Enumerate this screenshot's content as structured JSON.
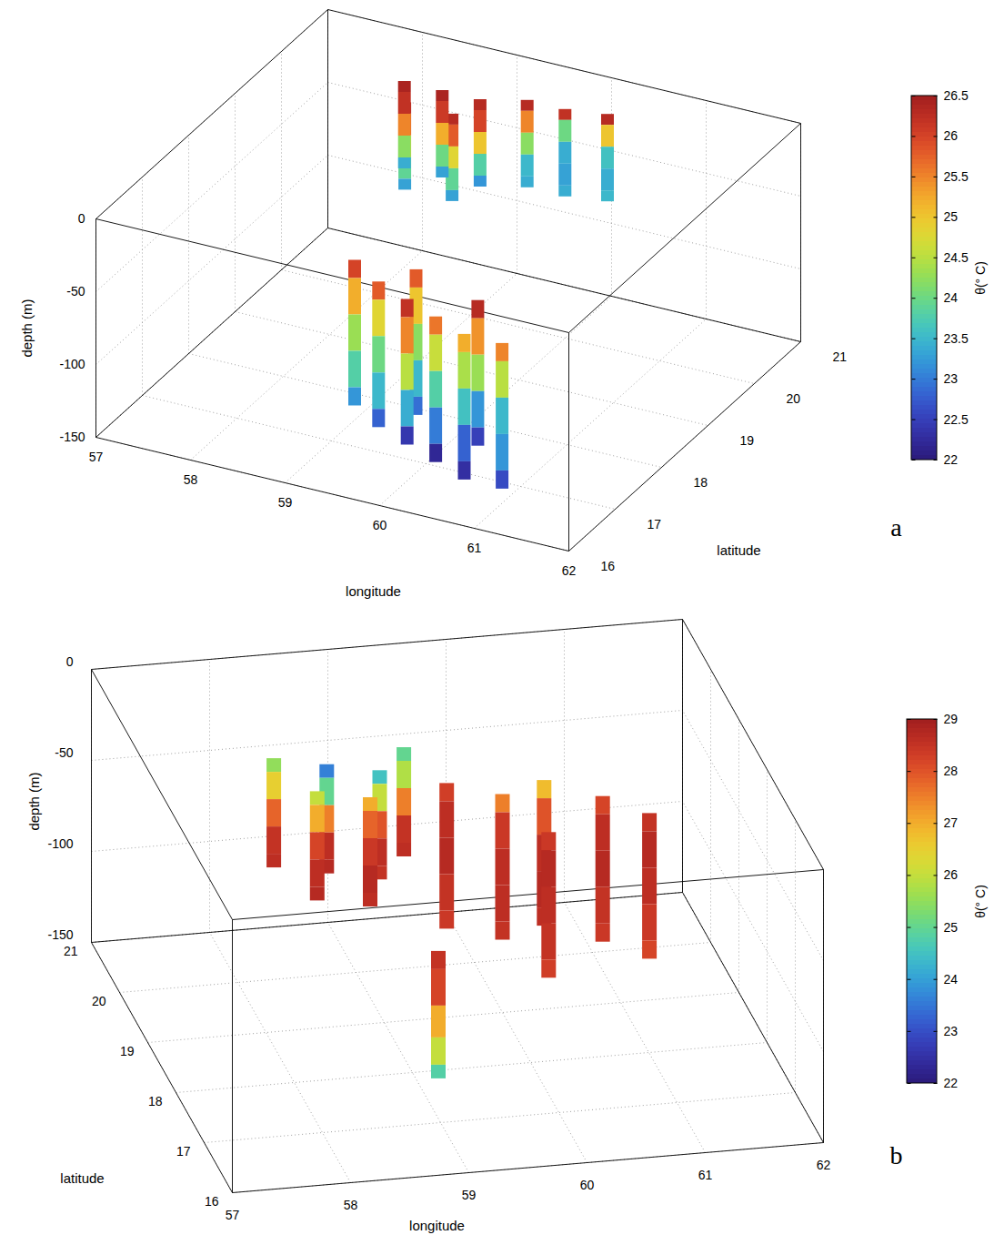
{
  "chart_data": [
    {
      "type": "surface3d",
      "panel": "a",
      "xlabel": "longitude",
      "ylabel": "latitude",
      "zlabel": "depth (m)",
      "xlim": [
        57,
        62
      ],
      "xticks": [
        57,
        58,
        59,
        60,
        61,
        62
      ],
      "ylim": [
        16,
        21
      ],
      "yticks": [
        16,
        17,
        18,
        19,
        20,
        21
      ],
      "zlim": [
        -150,
        0
      ],
      "zticks": [
        -150,
        -100,
        -50,
        0
      ],
      "grid": true,
      "colorbar": {
        "label": "θ(° C)",
        "range": [
          22,
          26.5
        ],
        "ticks": [
          22,
          22.5,
          23,
          23.5,
          24,
          24.5,
          25,
          25.5,
          26,
          26.5
        ]
      },
      "profiles": [
        {
          "lon": 58.5,
          "lat": 19.6,
          "depth": [
            0,
            -15,
            -30,
            -45,
            -60
          ],
          "theta": [
            26.3,
            25.8,
            24.8,
            23.9,
            23.3
          ]
        },
        {
          "lon": 59.0,
          "lat": 19.6,
          "depth": [
            0,
            -15,
            -30,
            -45,
            -60
          ],
          "theta": [
            26.3,
            25.8,
            24.8,
            23.9,
            23.3
          ]
        },
        {
          "lon": 58.3,
          "lat": 20.0,
          "depth": [
            0,
            -15,
            -30,
            -45,
            -60
          ],
          "theta": [
            26.4,
            26.2,
            25.5,
            24.2,
            23.4
          ]
        },
        {
          "lon": 58.7,
          "lat": 20.0,
          "depth": [
            0,
            -15,
            -30,
            -45,
            -60
          ],
          "theta": [
            26.4,
            26.1,
            25.2,
            24.0,
            23.3
          ]
        },
        {
          "lon": 59.1,
          "lat": 20.0,
          "depth": [
            0,
            -15,
            -30,
            -45,
            -60
          ],
          "theta": [
            26.3,
            26.0,
            25.0,
            23.8,
            23.2
          ]
        },
        {
          "lon": 59.5,
          "lat": 20.2,
          "depth": [
            0,
            -15,
            -30,
            -45,
            -60
          ],
          "theta": [
            26.3,
            25.5,
            24.2,
            23.5,
            23.4
          ]
        },
        {
          "lon": 59.9,
          "lat": 20.2,
          "depth": [
            0,
            -15,
            -30,
            -45,
            -60
          ],
          "theta": [
            26.2,
            24.0,
            23.4,
            23.3,
            23.4
          ]
        },
        {
          "lon": 60.3,
          "lat": 20.3,
          "depth": [
            0,
            -15,
            -30,
            -45,
            -60
          ],
          "theta": [
            26.3,
            25.0,
            23.6,
            23.4,
            23.5
          ]
        },
        {
          "lon": 59.0,
          "lat": 17.5,
          "depth": [
            -40,
            -65,
            -90,
            -115,
            -140
          ],
          "theta": [
            26.0,
            25.2,
            24.3,
            23.8,
            23.2
          ]
        },
        {
          "lon": 59.6,
          "lat": 17.6,
          "depth": [
            -40,
            -65,
            -90,
            -115,
            -140
          ],
          "theta": [
            25.8,
            25.0,
            24.2,
            23.5,
            22.9
          ]
        },
        {
          "lon": 60.4,
          "lat": 17.3,
          "depth": [
            -40,
            -65,
            -90,
            -115,
            -140
          ],
          "theta": [
            26.3,
            25.4,
            24.3,
            23.2,
            22.5
          ]
        },
        {
          "lon": 59.4,
          "lat": 17.2,
          "depth": [
            -40,
            -65,
            -90,
            -115,
            -140
          ],
          "theta": [
            25.8,
            24.8,
            24.0,
            23.5,
            22.8
          ]
        },
        {
          "lon": 59.8,
          "lat": 17.0,
          "depth": [
            -40,
            -65,
            -90,
            -115,
            -140
          ],
          "theta": [
            26.2,
            25.5,
            24.5,
            23.4,
            22.4
          ]
        },
        {
          "lon": 60.2,
          "lat": 16.8,
          "depth": [
            -40,
            -65,
            -90,
            -115,
            -140
          ],
          "theta": [
            25.6,
            24.6,
            23.8,
            23.0,
            22.2
          ]
        },
        {
          "lon": 60.6,
          "lat": 16.6,
          "depth": [
            -40,
            -65,
            -90,
            -115,
            -140
          ],
          "theta": [
            25.2,
            24.4,
            23.6,
            22.8,
            22.3
          ]
        },
        {
          "lon": 61.0,
          "lat": 16.6,
          "depth": [
            -40,
            -65,
            -90,
            -115,
            -140
          ],
          "theta": [
            25.5,
            24.5,
            23.5,
            23.2,
            22.6
          ]
        }
      ]
    },
    {
      "type": "surface3d",
      "panel": "b",
      "xlabel": "longitude",
      "ylabel": "latitude",
      "zlabel": "depth (m)",
      "xlim": [
        57,
        62
      ],
      "xticks": [
        57,
        58,
        59,
        60,
        61,
        62
      ],
      "ylim": [
        16,
        21
      ],
      "yticks": [
        16,
        17,
        18,
        19,
        20,
        21
      ],
      "zlim": [
        -150,
        0
      ],
      "zticks": [
        -150,
        -100,
        -50,
        0
      ],
      "grid": true,
      "colorbar": {
        "label": "θ(° C)",
        "range": [
          22,
          29
        ],
        "ticks": [
          22,
          23,
          24,
          25,
          26,
          27,
          28,
          29
        ]
      },
      "profiles": [
        {
          "lon": 59.5,
          "lat": 20.4,
          "depth": [
            -40,
            -55,
            -70,
            -85,
            -100
          ],
          "theta": [
            25.0,
            25.8,
            27.5,
            28.5,
            28.6
          ]
        },
        {
          "lon": 58.4,
          "lat": 20.4,
          "depth": [
            -40,
            -55,
            -70,
            -85,
            -100
          ],
          "theta": [
            25.5,
            26.5,
            27.8,
            28.5,
            28.6
          ]
        },
        {
          "lon": 58.8,
          "lat": 20.2,
          "depth": [
            -40,
            -55,
            -70,
            -85,
            -100
          ],
          "theta": [
            23.6,
            25.0,
            27.5,
            28.6,
            28.7
          ]
        },
        {
          "lon": 59.2,
          "lat": 20.0,
          "depth": [
            -40,
            -55,
            -70,
            -85,
            -100
          ],
          "theta": [
            24.5,
            26.0,
            28.0,
            28.6,
            28.5
          ]
        },
        {
          "lon": 58.6,
          "lat": 19.7,
          "depth": [
            -40,
            -55,
            -70,
            -85,
            -100
          ],
          "theta": [
            26.0,
            27.0,
            28.2,
            28.6,
            28.7
          ]
        },
        {
          "lon": 59.0,
          "lat": 19.5,
          "depth": [
            -40,
            -55,
            -70,
            -85,
            -100
          ],
          "theta": [
            27.0,
            27.8,
            28.4,
            28.7,
            28.6
          ]
        },
        {
          "lon": 59.6,
          "lat": 19.3,
          "depth": [
            -30,
            -50,
            -70,
            -90,
            -110
          ],
          "theta": [
            28.3,
            28.6,
            28.7,
            28.5,
            28.4
          ]
        },
        {
          "lon": 60.4,
          "lat": 19.2,
          "depth": [
            -30,
            -50,
            -70,
            -90,
            -110
          ],
          "theta": [
            26.8,
            28.0,
            28.6,
            28.7,
            28.6
          ]
        },
        {
          "lon": 60.0,
          "lat": 19.0,
          "depth": [
            -30,
            -50,
            -70,
            -90,
            -110
          ],
          "theta": [
            27.5,
            28.4,
            28.6,
            28.6,
            28.5
          ]
        },
        {
          "lon": 60.8,
          "lat": 18.8,
          "depth": [
            -30,
            -50,
            -70,
            -90,
            -110
          ],
          "theta": [
            28.2,
            28.6,
            28.7,
            28.5,
            28.4
          ]
        },
        {
          "lon": 61.1,
          "lat": 18.4,
          "depth": [
            -30,
            -50,
            -70,
            -90,
            -110
          ],
          "theta": [
            28.5,
            28.7,
            28.6,
            28.4,
            28.2
          ]
        },
        {
          "lon": 60.2,
          "lat": 18.2,
          "depth": [
            -30,
            -50,
            -70,
            -90,
            -110
          ],
          "theta": [
            28.4,
            28.7,
            28.6,
            28.5,
            28.3
          ]
        },
        {
          "lon": 59.1,
          "lat": 17.5,
          "depth": [
            -70,
            -90,
            -110,
            -125,
            -140
          ],
          "theta": [
            28.5,
            28.2,
            27.0,
            26.0,
            24.8
          ]
        }
      ]
    }
  ]
}
